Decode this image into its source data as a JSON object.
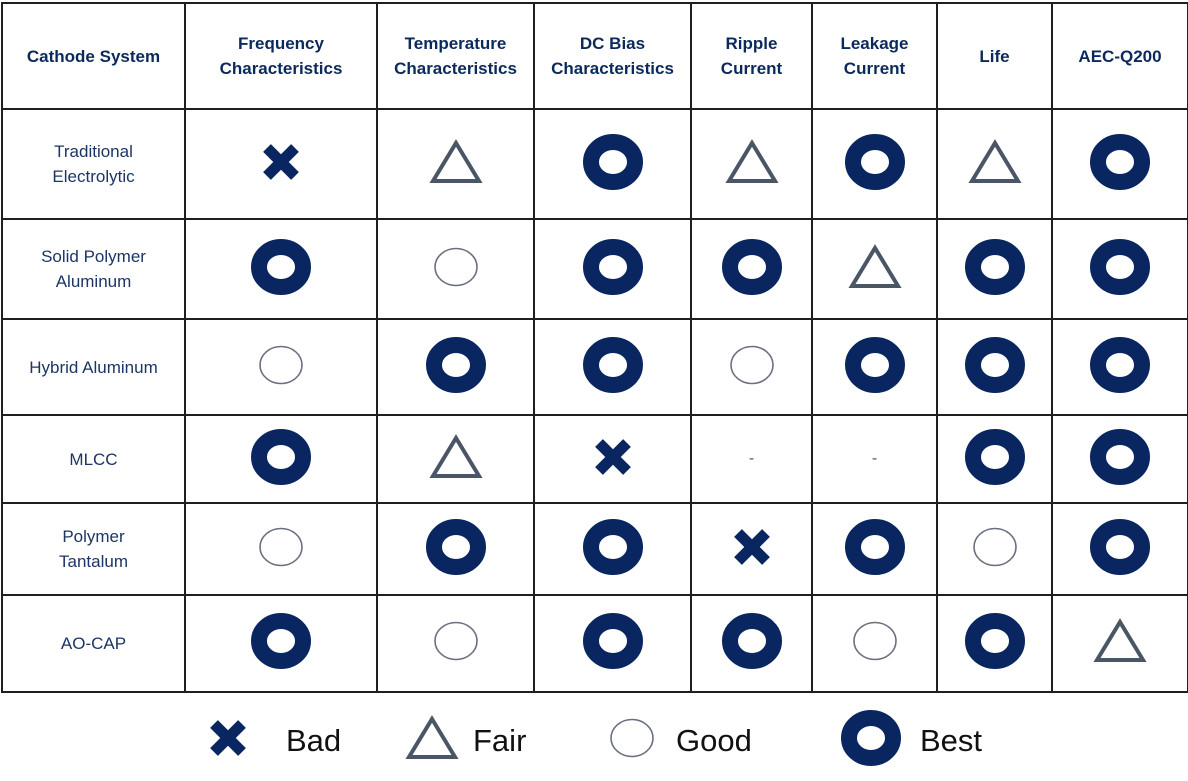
{
  "table": {
    "headers": [
      "Cathode System",
      "Frequency\nCharacteristics",
      "Temperature\nCharacteristics",
      "DC Bias\nCharacteristics",
      "Ripple\nCurrent",
      "Leakage\nCurrent",
      "Life",
      "AEC-Q200"
    ],
    "rows": [
      {
        "name": "Traditional\nElectrolytic",
        "ratings": [
          "bad",
          "fair",
          "best",
          "fair",
          "best",
          "fair",
          "best"
        ]
      },
      {
        "name": "Solid Polymer\nAluminum",
        "ratings": [
          "best",
          "good",
          "best",
          "best",
          "fair",
          "best",
          "best"
        ]
      },
      {
        "name": "Hybrid Aluminum",
        "ratings": [
          "good",
          "best",
          "best",
          "good",
          "best",
          "best",
          "best"
        ]
      },
      {
        "name": "MLCC",
        "ratings": [
          "best",
          "fair",
          "bad",
          "-",
          "-",
          "best",
          "best"
        ]
      },
      {
        "name": "Polymer\nTantalum",
        "ratings": [
          "good",
          "best",
          "best",
          "bad",
          "best",
          "good",
          "best"
        ]
      },
      {
        "name": "AO-CAP",
        "ratings": [
          "best",
          "good",
          "best",
          "best",
          "good",
          "best",
          "fair"
        ]
      }
    ]
  },
  "legend": [
    {
      "symbol": "bad",
      "label": "Bad"
    },
    {
      "symbol": "fair",
      "label": "Fair"
    },
    {
      "symbol": "good",
      "label": "Good"
    },
    {
      "symbol": "best",
      "label": "Best"
    }
  ],
  "colors": {
    "navy": "#0a2660",
    "slate": "#4a5566",
    "good_outline": "#6b7080",
    "header_text": "#0b2a5b",
    "grid_line": "#1f1f1f"
  }
}
